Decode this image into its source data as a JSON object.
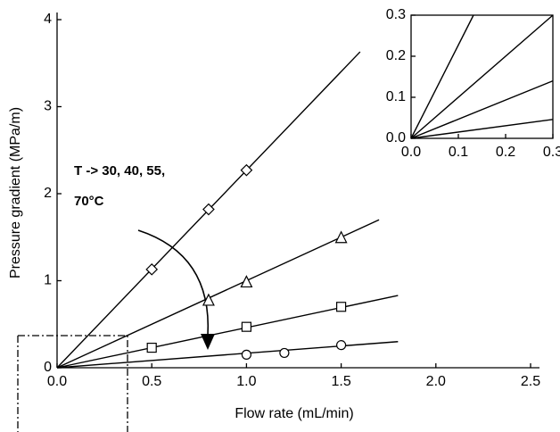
{
  "chart_data": [
    {
      "type": "scatter",
      "x_label": "Flow rate (mL/min)",
      "y_label": "Pressure gradient (MPa/m)",
      "annotation": [
        "T -> 30, 40, 55,",
        "70°C"
      ],
      "xlim": [
        0,
        2.5
      ],
      "ylim": [
        0,
        4
      ],
      "xticks": [
        {
          "value": 0,
          "label": "0.0"
        },
        0.5,
        {
          "value": 1,
          "label": "1.0"
        },
        1.5,
        {
          "value": 2,
          "label": "2.0"
        },
        2.5
      ],
      "yticks": [
        0,
        1,
        2,
        3,
        4
      ],
      "series": [
        {
          "marker": "diamond",
          "color": "#000000",
          "x": [
            0.5,
            0.8,
            1.0
          ],
          "values": [
            1.13,
            1.82,
            2.27
          ]
        },
        {
          "marker": "triangle",
          "color": "#000000",
          "x": [
            0.8,
            1.0,
            1.5
          ],
          "values": [
            0.77,
            0.98,
            1.49
          ]
        },
        {
          "marker": "square",
          "color": "#000000",
          "x": [
            0.5,
            1.0,
            1.5
          ],
          "values": [
            0.23,
            0.47,
            0.7
          ]
        },
        {
          "marker": "circle",
          "color": "#000000",
          "x": [
            1.0,
            1.2,
            1.5
          ],
          "values": [
            0.15,
            0.17,
            0.26
          ]
        }
      ],
      "lines": [
        {
          "x": [
            0,
            1.6
          ],
          "values": [
            0,
            3.63
          ]
        },
        {
          "x": [
            0,
            1.7
          ],
          "values": [
            0,
            1.7
          ]
        },
        {
          "x": [
            0,
            1.8
          ],
          "values": [
            0,
            0.83
          ]
        },
        {
          "x": [
            0,
            1.8
          ],
          "values": [
            0,
            0.3
          ]
        }
      ]
    },
    {
      "type": "line",
      "xlim": [
        0,
        0.3
      ],
      "ylim": [
        0,
        0.3
      ],
      "xticks": [
        {
          "value": 0,
          "label": "0.0"
        },
        0.1,
        0.2,
        0.3
      ],
      "yticks": [
        {
          "value": 0,
          "label": "0.0"
        },
        0.1,
        0.2,
        0.3
      ],
      "lines": [
        {
          "x": [
            0,
            0.132
          ],
          "values": [
            0,
            0.3
          ]
        },
        {
          "x": [
            0,
            0.3
          ],
          "values": [
            0,
            0.3
          ]
        },
        {
          "x": [
            0,
            0.3
          ],
          "values": [
            0,
            0.14
          ]
        },
        {
          "x": [
            0,
            0.3
          ],
          "values": [
            0,
            0.046
          ]
        }
      ]
    }
  ]
}
